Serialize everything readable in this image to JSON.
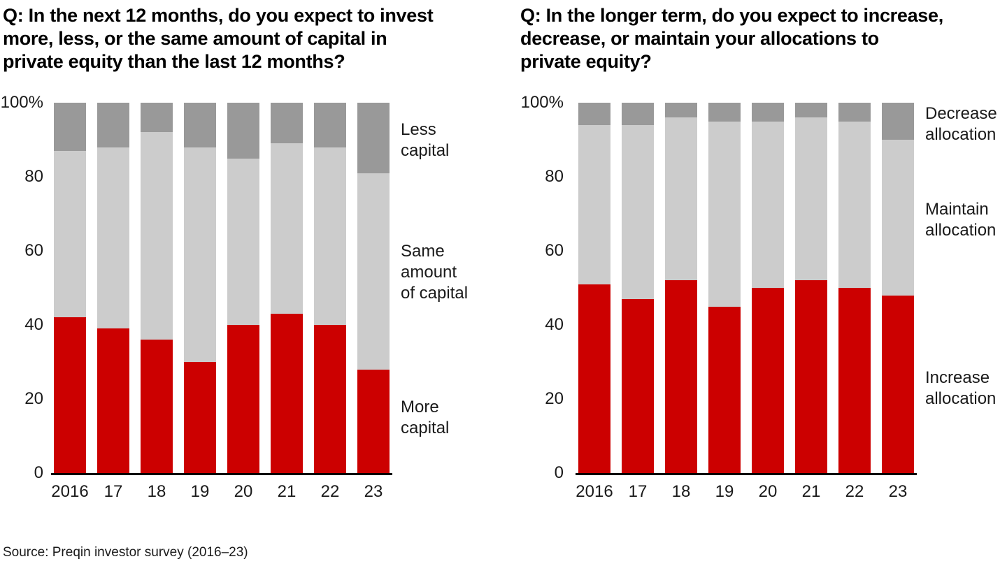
{
  "source": "Source: Preqin investor survey (2016–23)",
  "colors": {
    "increase_red": "#cc0000",
    "maintain_light_gray": "#cccccc",
    "decrease_dark_gray": "#999999",
    "axis_black": "#000000"
  },
  "charts": [
    {
      "title": "Q: In the next 12 months, do you expect to invest\nmore, less, or the same amount of capital in\nprivate equity than the last 12 months?",
      "chart_data": {
        "type": "bar",
        "stacked": true,
        "units": "%",
        "categories": [
          "2016",
          "17",
          "18",
          "19",
          "20",
          "21",
          "22",
          "23"
        ],
        "series": [
          {
            "name": "More capital",
            "label": "More\ncapital",
            "color": "#cc0000",
            "values": [
              42,
              39,
              36,
              30,
              40,
              43,
              40,
              28
            ]
          },
          {
            "name": "Same amount of capital",
            "label": "Same\namount\nof capital",
            "color": "#cccccc",
            "values": [
              45,
              49,
              56,
              58,
              45,
              46,
              48,
              53
            ]
          },
          {
            "name": "Less capital",
            "label": "Less\ncapital",
            "color": "#999999",
            "values": [
              13,
              12,
              8,
              12,
              15,
              11,
              12,
              19
            ]
          }
        ],
        "ylim": [
          0,
          100
        ],
        "yticks": [
          0,
          20,
          40,
          60,
          80,
          100
        ],
        "ytick_labels": [
          "0",
          "20",
          "40",
          "60",
          "80",
          "100%"
        ],
        "grid": false,
        "legend_position": "right-of-bars"
      }
    },
    {
      "title": "Q: In the longer term, do you expect to increase,\ndecrease, or maintain your allocations to\nprivate equity?",
      "chart_data": {
        "type": "bar",
        "stacked": true,
        "units": "%",
        "categories": [
          "2016",
          "17",
          "18",
          "19",
          "20",
          "21",
          "22",
          "23"
        ],
        "series": [
          {
            "name": "Increase allocation",
            "label": "Increase\nallocation",
            "color": "#cc0000",
            "values": [
              51,
              47,
              52,
              45,
              50,
              52,
              50,
              48
            ]
          },
          {
            "name": "Maintain allocation",
            "label": "Maintain\nallocation",
            "color": "#cccccc",
            "values": [
              43,
              47,
              44,
              50,
              45,
              44,
              45,
              42
            ]
          },
          {
            "name": "Decrease allocation",
            "label": "Decrease\nallocation",
            "color": "#999999",
            "values": [
              6,
              6,
              4,
              5,
              5,
              4,
              5,
              10
            ]
          }
        ],
        "ylim": [
          0,
          100
        ],
        "yticks": [
          0,
          20,
          40,
          60,
          80,
          100
        ],
        "ytick_labels": [
          "0",
          "20",
          "40",
          "60",
          "80",
          "100%"
        ],
        "grid": false,
        "legend_position": "right-of-bars"
      }
    }
  ]
}
